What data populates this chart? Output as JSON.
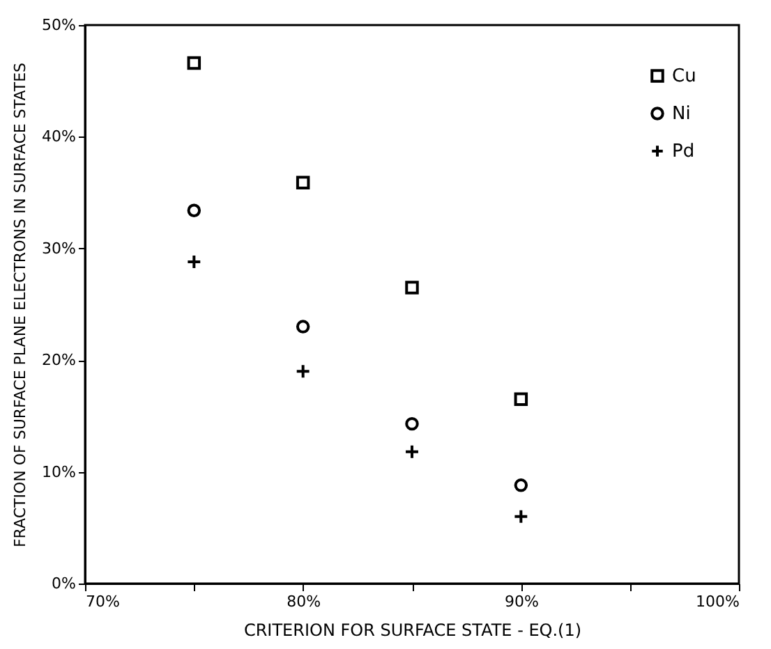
{
  "chart_data": {
    "type": "scatter",
    "xlabel": "CRITERION FOR SURFACE STATE - EQ.(1)",
    "ylabel": "FRACTION OF SURFACE PLANE ELECTRONS IN SURFACE STATES",
    "x": [
      75,
      80,
      85,
      90
    ],
    "series": [
      {
        "name": "Cu",
        "color": "#000000",
        "marker": "square",
        "values": [
          46.6,
          35.9,
          26.5,
          16.5
        ]
      },
      {
        "name": "Ni",
        "color": "#000000",
        "marker": "circle",
        "values": [
          33.4,
          23.0,
          14.3,
          8.8
        ]
      },
      {
        "name": "Pd",
        "color": "#000000",
        "marker": "cross",
        "values": [
          28.8,
          19.0,
          11.8,
          6.0
        ]
      }
    ],
    "xlim": [
      70,
      100
    ],
    "xticks": [
      {
        "value": 70,
        "label": "70%"
      },
      {
        "value": 75,
        "label": null
      },
      {
        "value": 80,
        "label": "80%"
      },
      {
        "value": 85,
        "label": null
      },
      {
        "value": 90,
        "label": "90%"
      },
      {
        "value": 95,
        "label": null
      },
      {
        "value": 100,
        "label": "100%"
      }
    ],
    "ylim": [
      0,
      50
    ],
    "yticks": [
      {
        "value": 0,
        "label": "0%"
      },
      {
        "value": 10,
        "label": "10%"
      },
      {
        "value": 20,
        "label": "20%"
      },
      {
        "value": 30,
        "label": "30%"
      },
      {
        "value": 40,
        "label": "40%"
      },
      {
        "value": 50,
        "label": "50%"
      }
    ],
    "grid": false,
    "legend": "top right"
  }
}
